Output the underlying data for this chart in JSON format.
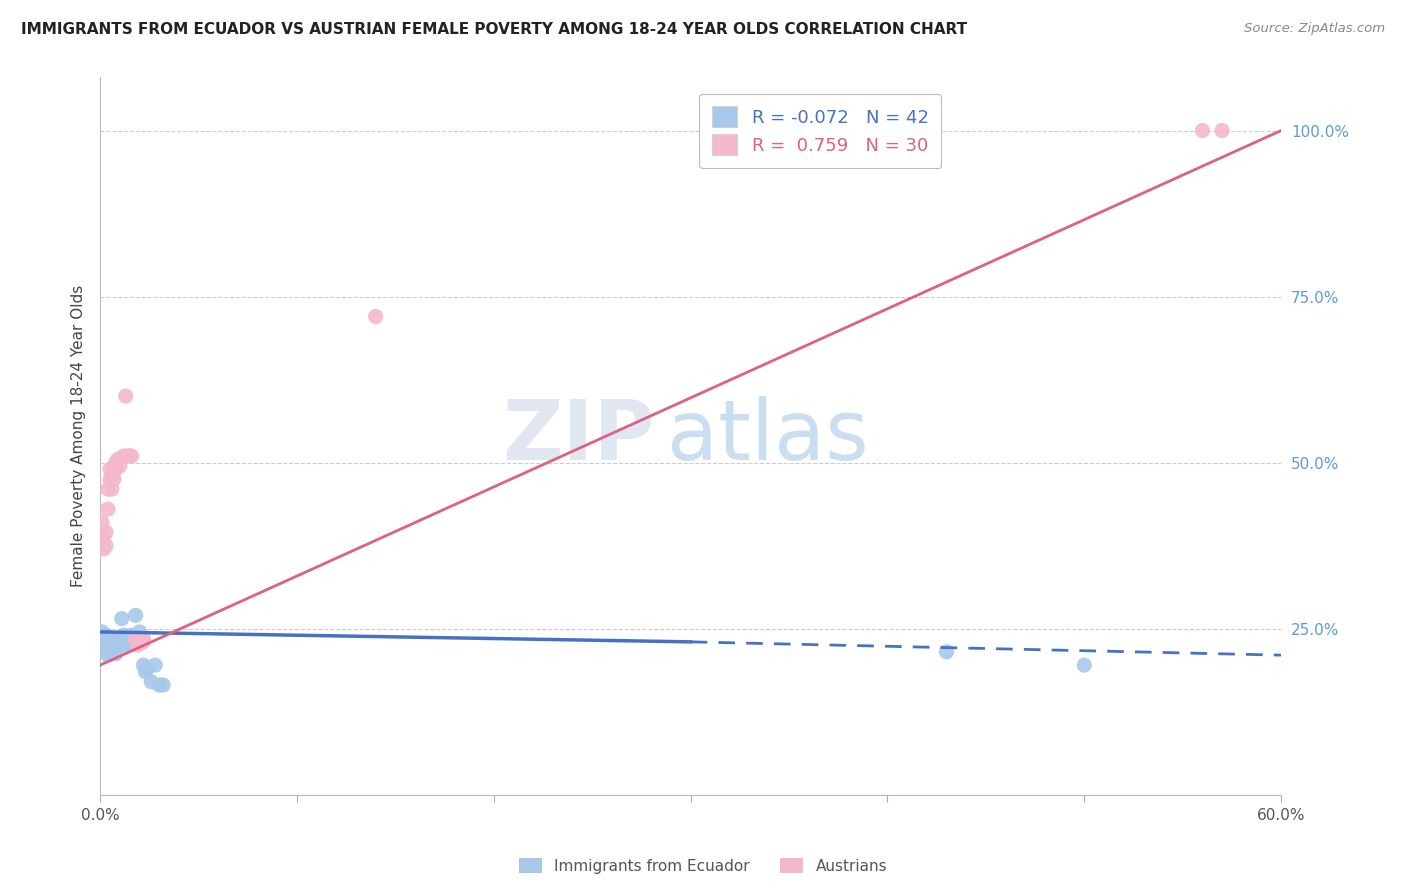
{
  "title": "IMMIGRANTS FROM ECUADOR VS AUSTRIAN FEMALE POVERTY AMONG 18-24 YEAR OLDS CORRELATION CHART",
  "source": "Source: ZipAtlas.com",
  "ylabel": "Female Poverty Among 18-24 Year Olds",
  "ylabel_right_ticks": [
    0.0,
    0.25,
    0.5,
    0.75,
    1.0
  ],
  "ylabel_right_labels": [
    "",
    "25.0%",
    "50.0%",
    "75.0%",
    "100.0%"
  ],
  "xlim": [
    0.0,
    0.6
  ],
  "ylim": [
    0.0,
    1.08
  ],
  "blue_scatter": [
    [
      0.001,
      0.245
    ],
    [
      0.001,
      0.23
    ],
    [
      0.002,
      0.235
    ],
    [
      0.002,
      0.225
    ],
    [
      0.002,
      0.22
    ],
    [
      0.003,
      0.24
    ],
    [
      0.003,
      0.23
    ],
    [
      0.003,
      0.215
    ],
    [
      0.004,
      0.235
    ],
    [
      0.004,
      0.22
    ],
    [
      0.004,
      0.21
    ],
    [
      0.005,
      0.23
    ],
    [
      0.005,
      0.225
    ],
    [
      0.005,
      0.215
    ],
    [
      0.006,
      0.228
    ],
    [
      0.006,
      0.218
    ],
    [
      0.007,
      0.232
    ],
    [
      0.007,
      0.222
    ],
    [
      0.008,
      0.235
    ],
    [
      0.008,
      0.212
    ],
    [
      0.009,
      0.225
    ],
    [
      0.01,
      0.23
    ],
    [
      0.011,
      0.265
    ],
    [
      0.012,
      0.24
    ],
    [
      0.013,
      0.225
    ],
    [
      0.014,
      0.235
    ],
    [
      0.015,
      0.228
    ],
    [
      0.016,
      0.24
    ],
    [
      0.017,
      0.23
    ],
    [
      0.018,
      0.27
    ],
    [
      0.019,
      0.235
    ],
    [
      0.02,
      0.245
    ],
    [
      0.021,
      0.235
    ],
    [
      0.022,
      0.195
    ],
    [
      0.023,
      0.185
    ],
    [
      0.024,
      0.19
    ],
    [
      0.026,
      0.17
    ],
    [
      0.028,
      0.195
    ],
    [
      0.03,
      0.165
    ],
    [
      0.032,
      0.165
    ],
    [
      0.43,
      0.215
    ],
    [
      0.5,
      0.195
    ]
  ],
  "pink_scatter": [
    [
      0.001,
      0.41
    ],
    [
      0.002,
      0.39
    ],
    [
      0.002,
      0.37
    ],
    [
      0.003,
      0.395
    ],
    [
      0.003,
      0.375
    ],
    [
      0.004,
      0.46
    ],
    [
      0.004,
      0.43
    ],
    [
      0.005,
      0.49
    ],
    [
      0.005,
      0.475
    ],
    [
      0.006,
      0.48
    ],
    [
      0.006,
      0.46
    ],
    [
      0.007,
      0.49
    ],
    [
      0.007,
      0.475
    ],
    [
      0.008,
      0.5
    ],
    [
      0.008,
      0.49
    ],
    [
      0.009,
      0.505
    ],
    [
      0.01,
      0.495
    ],
    [
      0.012,
      0.51
    ],
    [
      0.013,
      0.6
    ],
    [
      0.014,
      0.51
    ],
    [
      0.015,
      0.51
    ],
    [
      0.016,
      0.51
    ],
    [
      0.018,
      0.235
    ],
    [
      0.019,
      0.225
    ],
    [
      0.02,
      0.23
    ],
    [
      0.022,
      0.235
    ],
    [
      0.022,
      0.23
    ],
    [
      0.14,
      0.72
    ],
    [
      0.56,
      1.0
    ],
    [
      0.57,
      1.0
    ]
  ],
  "blue_line_solid": [
    [
      0.0,
      0.245
    ],
    [
      0.3,
      0.23
    ]
  ],
  "blue_line_dashed": [
    [
      0.3,
      0.23
    ],
    [
      0.6,
      0.21
    ]
  ],
  "pink_line": [
    [
      0.0,
      0.195
    ],
    [
      0.6,
      1.0
    ]
  ],
  "watermark_zip": "ZIP",
  "watermark_atlas": "atlas",
  "scatter_size": 120,
  "blue_color": "#a8c8ea",
  "pink_color": "#f4b8cc",
  "blue_line_color": "#4472c4",
  "pink_line_color": "#e06080",
  "bg_color": "#ffffff",
  "grid_color": "#cccccc",
  "legend_blue_R": "-0.072",
  "legend_blue_N": "42",
  "legend_pink_R": "0.759",
  "legend_pink_N": "30"
}
